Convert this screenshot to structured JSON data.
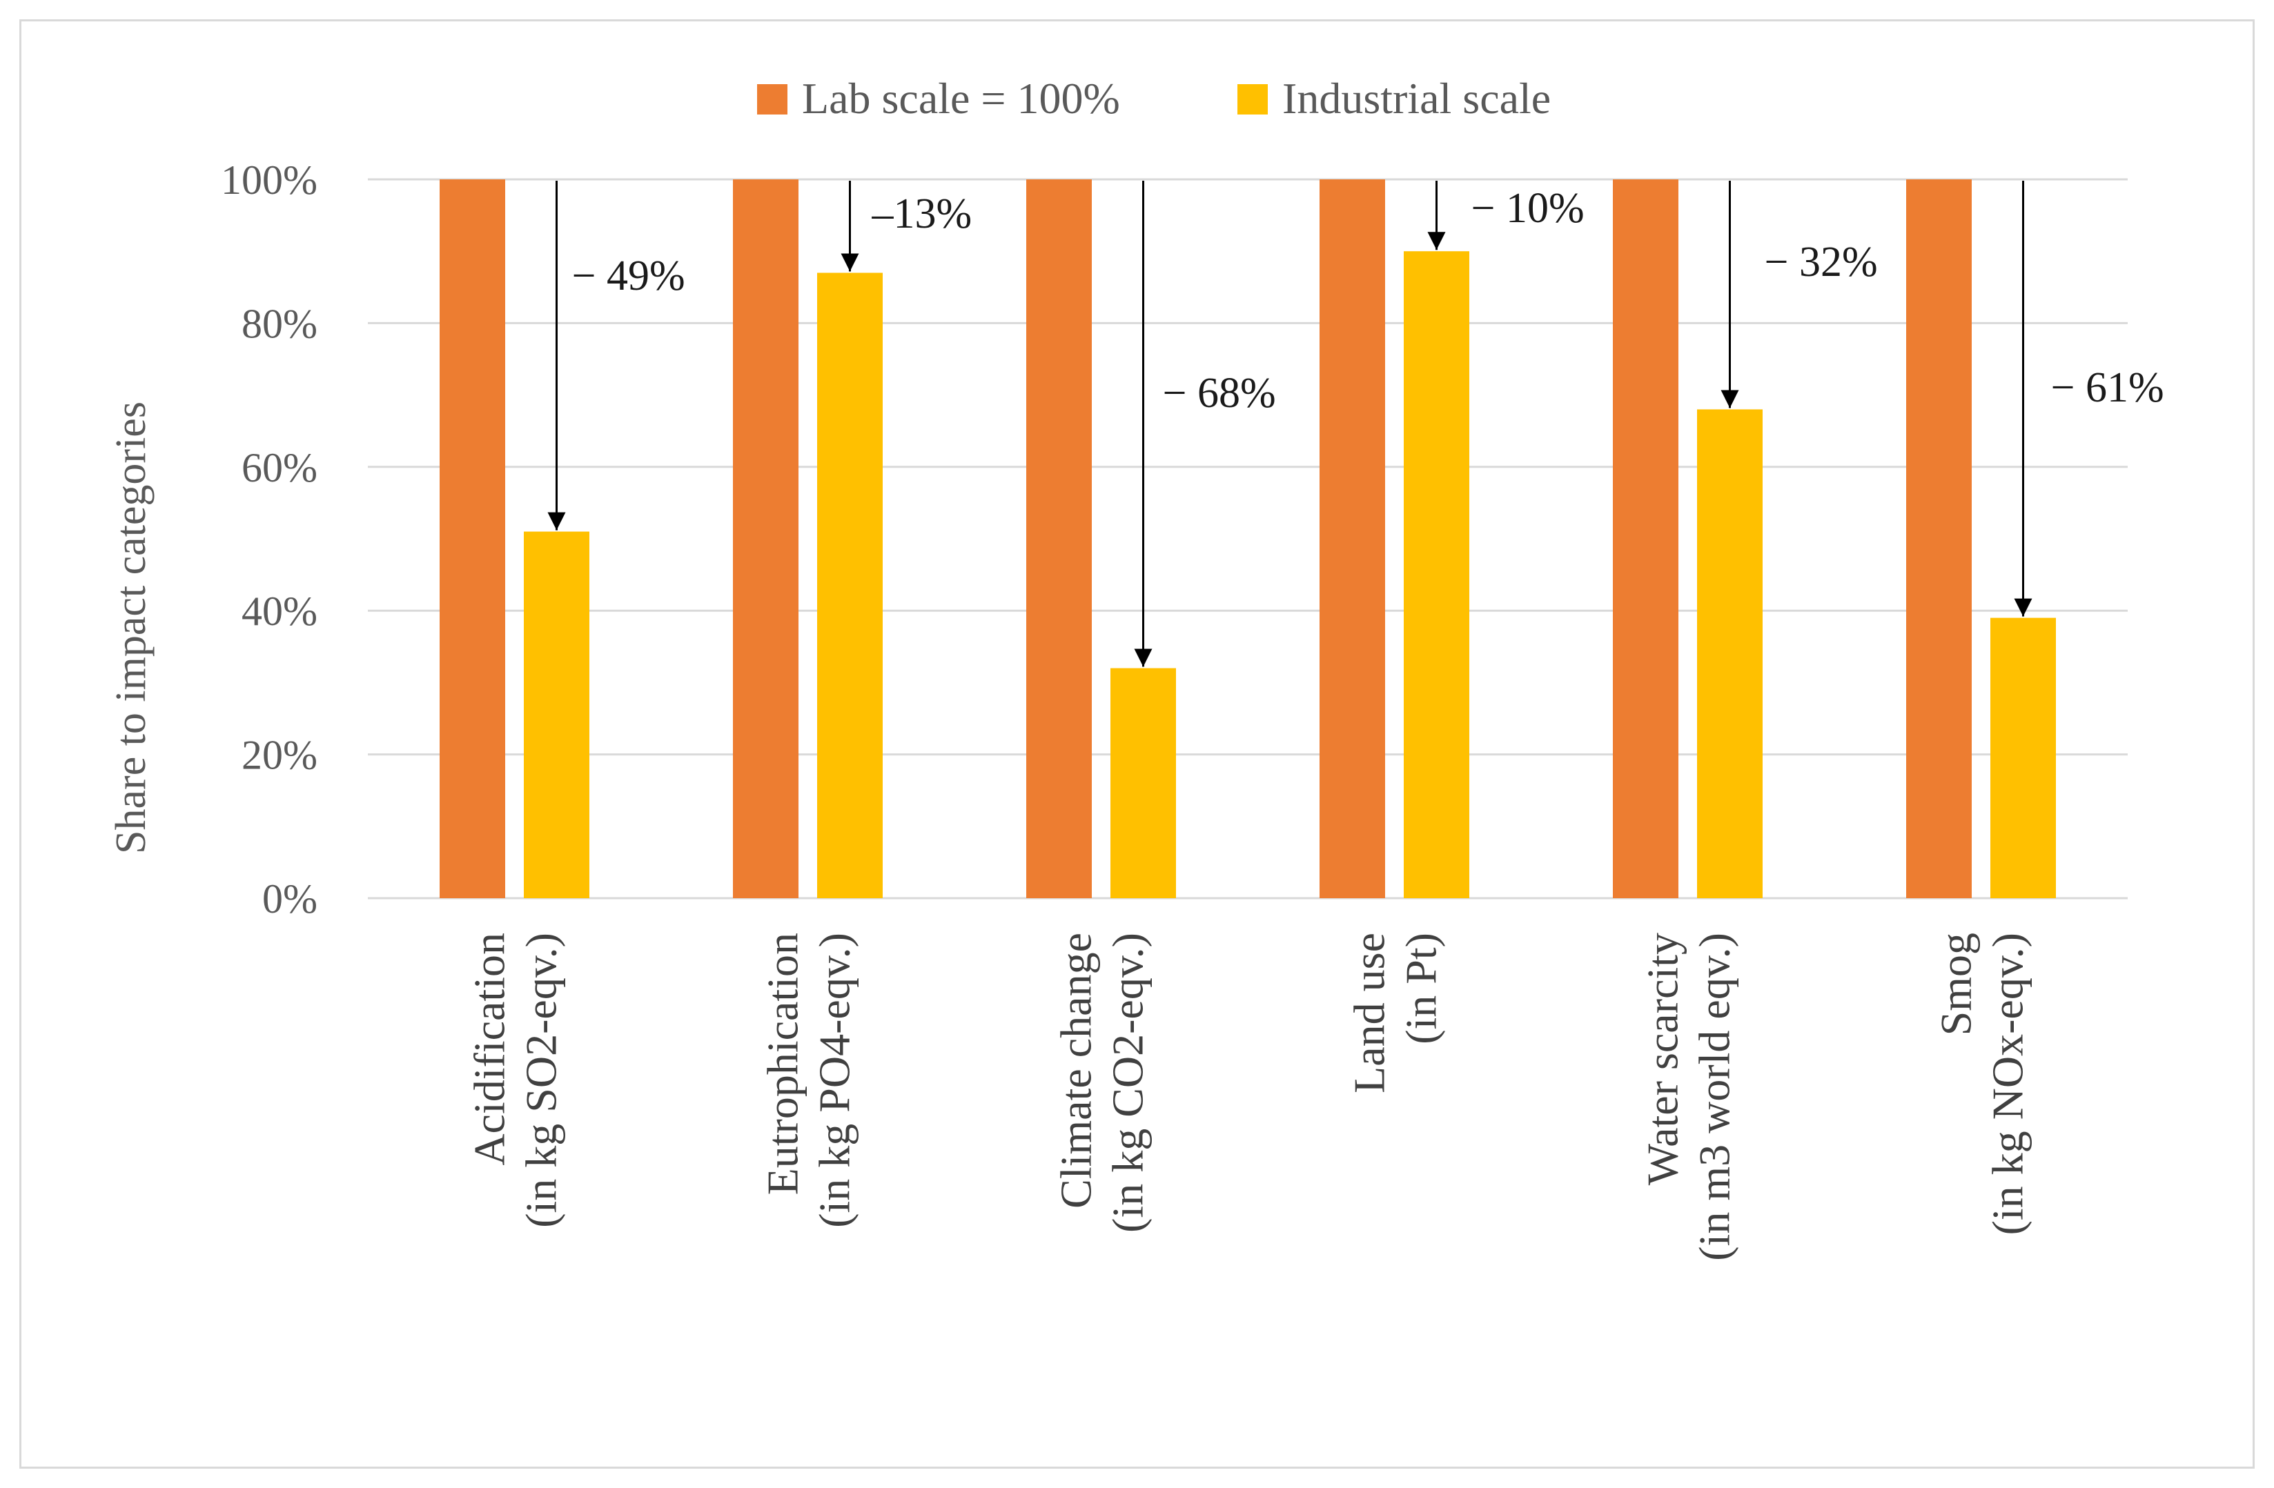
{
  "chart_data": {
    "type": "bar",
    "title": "",
    "ylabel": "Share to impact categories",
    "xlabel": "",
    "ylim": [
      0,
      100
    ],
    "yticks": [
      0,
      20,
      40,
      60,
      80,
      100
    ],
    "ytick_labels": [
      "0%",
      "20%",
      "40%",
      "60%",
      "80%",
      "100%"
    ],
    "grid": true,
    "legend_position": "top-center",
    "categories": [
      {
        "line1": "Acidification",
        "line2": "(in kg SO2-eqv.)"
      },
      {
        "line1": "Eutrophication",
        "line2": "(in kg PO4-eqv.)"
      },
      {
        "line1": "Climate change",
        "line2": "(in kg CO2-eqv.)"
      },
      {
        "line1": "Land use",
        "line2": "(in Pt)"
      },
      {
        "line1": "Water scarcity",
        "line2": "(in m3 world eqv.)"
      },
      {
        "line1": "Smog",
        "line2": "(in kg NOx-eqv.)"
      }
    ],
    "series": [
      {
        "name": "Lab scale = 100%",
        "color": "#ed7d31",
        "values": [
          100,
          100,
          100,
          100,
          100,
          100
        ]
      },
      {
        "name": "Industrial scale",
        "color": "#ffc000",
        "values": [
          51,
          87,
          32,
          90,
          68,
          39
        ]
      }
    ],
    "annotations": [
      "− 49%",
      "–13%",
      "− 68%",
      "− 10%",
      "− 32%",
      "− 61%"
    ]
  }
}
